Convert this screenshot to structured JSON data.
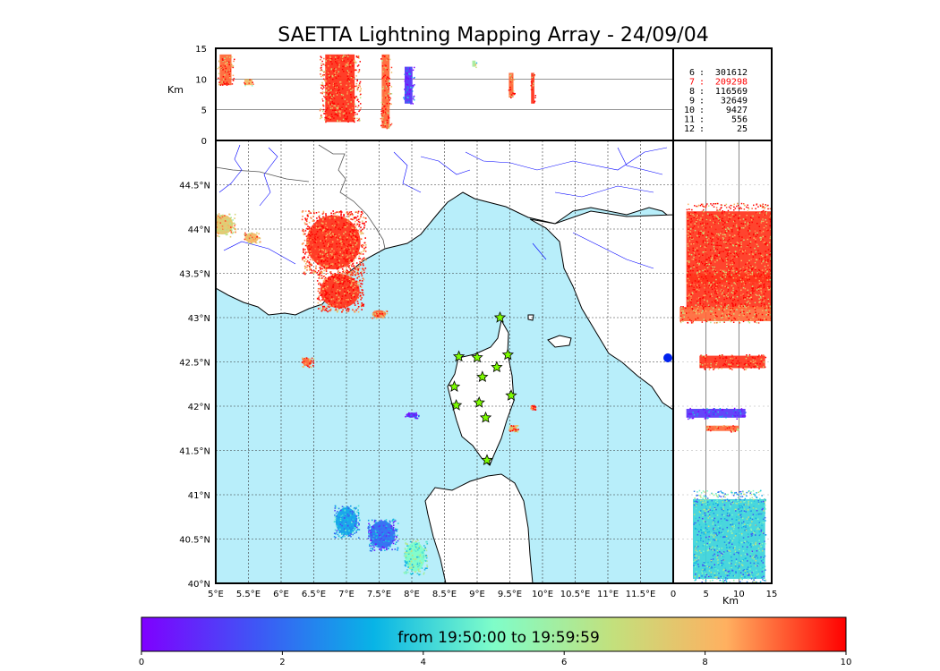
{
  "chart_data": {
    "type": "scatter",
    "title": "SAETTA Lightning Mapping Array - 24/09/04",
    "panels": {
      "map": {
        "xlim": [
          5,
          12
        ],
        "ylim": [
          40,
          45
        ],
        "x_ticks": [
          5,
          5.5,
          6,
          6.5,
          7,
          7.5,
          8,
          8.5,
          9,
          9.5,
          10,
          10.5,
          11,
          11.5
        ],
        "x_tick_labels": [
          "5°E",
          "5.5°E",
          "6°E",
          "6.5°E",
          "7°E",
          "7.5°E",
          "8°E",
          "8.5°E",
          "9°E",
          "9.5°E",
          "10°E",
          "10.5°E",
          "11°E",
          "11.5°E"
        ],
        "y_ticks": [
          40,
          40.5,
          41,
          41.5,
          42,
          42.5,
          43,
          43.5,
          44,
          44.5
        ],
        "y_tick_labels": [
          "40°N",
          "40.5°N",
          "41°N",
          "41.5°N",
          "42°N",
          "42.5°N",
          "43°N",
          "43.5°N",
          "44°N",
          "44.5°N"
        ],
        "grid": true,
        "stations": [
          [
            9.35,
            43.0
          ],
          [
            8.72,
            42.56
          ],
          [
            9.0,
            42.55
          ],
          [
            9.47,
            42.58
          ],
          [
            9.08,
            42.33
          ],
          [
            9.3,
            42.44
          ],
          [
            8.65,
            42.22
          ],
          [
            8.68,
            42.01
          ],
          [
            9.03,
            42.04
          ],
          [
            9.52,
            42.12
          ],
          [
            9.13,
            41.87
          ],
          [
            9.15,
            41.39
          ]
        ],
        "clusters": [
          {
            "lon": 5.1,
            "lat": 44.05,
            "time": 7.5
          },
          {
            "lon": 5.55,
            "lat": 43.9,
            "time": 8
          },
          {
            "lon": 6.8,
            "lat": 43.85,
            "time": 9.5
          },
          {
            "lon": 6.9,
            "lat": 43.3,
            "time": 9.5
          },
          {
            "lon": 7.5,
            "lat": 43.04,
            "time": 9
          },
          {
            "lon": 6.4,
            "lat": 42.5,
            "time": 9
          },
          {
            "lon": 8.0,
            "lat": 41.9,
            "time": 0.5
          },
          {
            "lon": 9.55,
            "lat": 41.75,
            "time": 8.5
          },
          {
            "lon": 9.85,
            "lat": 41.99,
            "time": 9.5
          },
          {
            "lon": 7.0,
            "lat": 40.7,
            "time": 3
          },
          {
            "lon": 7.55,
            "lat": 40.55,
            "time": 2
          },
          {
            "lon": 8.05,
            "lat": 40.3,
            "time": 5
          }
        ]
      },
      "alt_lon": {
        "xlim": [
          5,
          12
        ],
        "ylim": [
          0,
          15
        ],
        "y_ticks": [
          0,
          5,
          10,
          15
        ],
        "ylabel": "Km"
      },
      "lat_alt": {
        "xlim": [
          0,
          15
        ],
        "ylim": [
          40,
          45
        ],
        "x_ticks": [
          0,
          5,
          10,
          15
        ],
        "xlabel": "Km"
      }
    },
    "source_counts": [
      {
        "stations": "6",
        "count": "301612"
      },
      {
        "stations": "7",
        "count": "209298"
      },
      {
        "stations": "8",
        "count": "116569"
      },
      {
        "stations": "9",
        "count": "32649"
      },
      {
        "stations": "10",
        "count": "9427"
      },
      {
        "stations": "11",
        "count": "556"
      },
      {
        "stations": "12",
        "count": "25"
      }
    ],
    "highlight_color": "#ff0000",
    "colorbar": {
      "label": "from 19:50:00 to 19:59:59",
      "range": [
        0,
        10
      ],
      "ticks": [
        0,
        2,
        4,
        6,
        8,
        10
      ],
      "colormap": "rainbow"
    },
    "colors": {
      "sea": "#b8eefa",
      "land": "#ffffff",
      "rivers": "#0000ff",
      "stroke_red": "#ff4d26",
      "station": "#7cfc00"
    }
  }
}
